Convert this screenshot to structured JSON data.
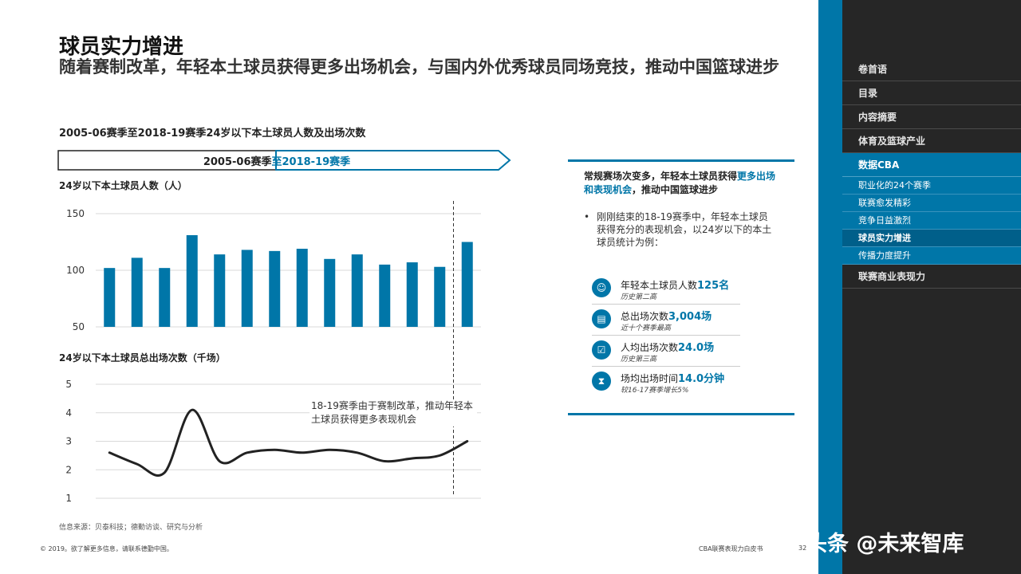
{
  "page": {
    "title": "球员实力增进",
    "subtitle": "随着赛制改革，年轻本土球员获得更多出场机会，与国内外优秀球员同场竞技，推动中国篮球进步",
    "chart_heading": "2005-06赛季至2018-19赛季24岁以下本土球员人数及出场次数",
    "period_from": "2005-06赛季",
    "period_to": "至2018-19赛季",
    "source": "信息来源：贝泰科技；德勤访谈、研究与分析",
    "footer_left": "© 2019。欲了解更多信息，请联系德勤中国。",
    "footer_mid": "CBA联赛表现力白皮书",
    "page_number": "32"
  },
  "annotation": "18-19赛季由于赛制改革，推动年轻本土球员获得更多表现机会",
  "panel": {
    "head_part1": "常规赛场次变多，年轻本土球员获得",
    "head_highlight": "更多出场和表现机会",
    "head_part2": "，推动中国篮球进步",
    "bullet": "刚刚结束的18-19赛季中，年轻本土球员获得充分的表现机会，以24岁以下的本土球员统计为例：",
    "stats": [
      {
        "icon": "person-icon",
        "glyph": "☺",
        "label": "年轻本土球员人数",
        "value": "125名",
        "sub": "历史第二高"
      },
      {
        "icon": "calendar-icon",
        "glyph": "▤",
        "label": "总出场次数",
        "value": "3,004场",
        "sub": "近十个赛季最高"
      },
      {
        "icon": "checklist-icon",
        "glyph": "☑",
        "label": "人均出场次数",
        "value": "24.0场",
        "sub": "历史第三高"
      },
      {
        "icon": "hourglass-icon",
        "glyph": "⧗",
        "label": "场均出场时间",
        "value": "14.0分钟",
        "sub": "较16-17赛季增长5%"
      }
    ]
  },
  "sidebar": {
    "items": [
      {
        "label": "卷首语"
      },
      {
        "label": "目录"
      },
      {
        "label": "内容摘要"
      },
      {
        "label": "体育及篮球产业"
      },
      {
        "label": "数据CBA",
        "active": true
      }
    ],
    "sub_items": [
      {
        "label": "职业化的24个赛季"
      },
      {
        "label": "联赛愈发精彩"
      },
      {
        "label": "竞争日益激烈"
      },
      {
        "label": "球员实力增进",
        "current": true
      },
      {
        "label": "传播力度提升"
      }
    ],
    "after_items": [
      {
        "label": "联赛商业表现力"
      }
    ]
  },
  "watermark": "头条 @未来智库",
  "colors": {
    "accent": "#0076a8",
    "sidebar": "#262626",
    "line": "#222222"
  },
  "chart_data": [
    {
      "type": "bar",
      "ylabel": "24岁以下本土球员人数（人）",
      "ylim": [
        50,
        150
      ],
      "yticks": [
        50,
        100,
        150
      ],
      "values": [
        102,
        111,
        102,
        131,
        114,
        118,
        117,
        119,
        110,
        114,
        105,
        107,
        103,
        125
      ],
      "color": "#0076a8"
    },
    {
      "type": "line",
      "ylabel": "24岁以下本土球员总出场次数（千场）",
      "ylim": [
        1,
        5
      ],
      "yticks": [
        1,
        2,
        3,
        4,
        5
      ],
      "values": [
        2.6,
        2.2,
        1.9,
        4.1,
        2.3,
        2.6,
        2.7,
        2.6,
        2.7,
        2.6,
        2.3,
        2.4,
        2.5,
        3.0
      ],
      "color": "#222222"
    }
  ]
}
